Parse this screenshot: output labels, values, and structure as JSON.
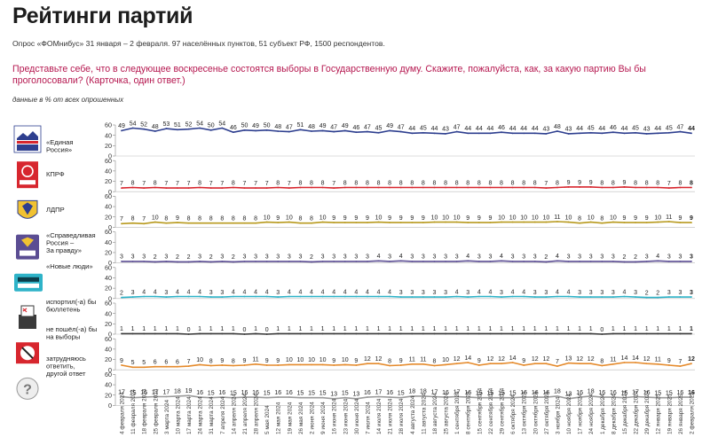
{
  "header": {
    "title": "Рейтинги партий",
    "subtitle": "Опрос «ФОМнибус» 31 января – 2 февраля. 97 населённых пунктов, 51 субъект РФ, 1500 респондентов.",
    "question": "Представьте себе, что в следующее воскресенье состоятся выборы в Государственную думу. Скажите, пожалуйста, как, за какую партию Вы бы проголосовали? (Карточка, один ответ.)",
    "unit_note": "данные в % от всех опрошенных"
  },
  "chart_data": {
    "type": "line",
    "title": "Рейтинги партий",
    "ylim": [
      0,
      60
    ],
    "y_ticks": [
      0,
      20,
      40,
      60
    ],
    "grid": false,
    "x": [
      "4 февраля 2024",
      "11 февраля 2024",
      "18 февраля 2024",
      "25 февраля 2024",
      "3 марта 2024",
      "10 марта 2024",
      "17 марта 2024",
      "24 марта 2024",
      "31 марта 2024",
      "7 апреля 2024",
      "14 апреля 2024",
      "21 апреля 2024",
      "28 апреля 2024",
      "5 мая 2024",
      "12 мая 2024",
      "19 мая 2024",
      "26 мая 2024",
      "2 июня 2024",
      "9 июня 2024",
      "16 июня 2024",
      "23 июня 2024",
      "30 июня 2024",
      "7 июля 2024",
      "14 июля 2024",
      "21 июля 2024",
      "28 июля 2024",
      "4 августа 2024",
      "11 августа 2024",
      "18 августа 2024",
      "25 августа 2024",
      "1 сентября 2024",
      "8 сентября 2024",
      "15 сентября 2024",
      "22 сентября 2024",
      "29 сентября 2024",
      "6 октября 2024",
      "13 октября 2024",
      "20 октября 2024",
      "27 октября 2024",
      "3 ноября 2024",
      "10 ноября 2024",
      "17 ноября 2024",
      "24 ноября 2024",
      "1 декабря 2024",
      "8 декабря 2024",
      "15 декабря 2024",
      "22 декабря 2024",
      "29 декабря 2024",
      "12 января 2025",
      "19 января 2025",
      "26 января 2025",
      "2 февраля 2025"
    ],
    "series": [
      {
        "name": "«Единая Россия»",
        "color": "#2e3f8f",
        "values": [
          49,
          54,
          52,
          48,
          53,
          51,
          52,
          54,
          50,
          54,
          46,
          50,
          49,
          50,
          48,
          47,
          51,
          48,
          49,
          47,
          49,
          46,
          47,
          45,
          49,
          47,
          44,
          45,
          44,
          43,
          47,
          44,
          44,
          44,
          46,
          44,
          44,
          44,
          43,
          48,
          43,
          44,
          45,
          44,
          46,
          44,
          45,
          43,
          44,
          45,
          47,
          44
        ]
      },
      {
        "name": "КПРФ",
        "color": "#d7262e",
        "values": [
          7,
          8,
          7,
          8,
          7,
          7,
          7,
          8,
          7,
          7,
          8,
          7,
          7,
          7,
          8,
          7,
          8,
          8,
          8,
          7,
          8,
          8,
          8,
          8,
          8,
          8,
          8,
          8,
          8,
          8,
          8,
          8,
          8,
          8,
          8,
          8,
          8,
          8,
          7,
          8,
          9,
          9,
          9,
          8,
          8,
          9,
          8,
          8,
          8,
          7,
          8,
          8
        ]
      },
      {
        "name": "ЛДПР",
        "color": "#b89a1e",
        "values": [
          7,
          8,
          7,
          10,
          8,
          9,
          8,
          8,
          8,
          8,
          8,
          8,
          8,
          10,
          9,
          10,
          8,
          8,
          10,
          9,
          9,
          9,
          9,
          10,
          9,
          9,
          9,
          9,
          10,
          10,
          10,
          9,
          9,
          9,
          10,
          10,
          10,
          10,
          10,
          11,
          10,
          8,
          10,
          8,
          10,
          9,
          9,
          9,
          10,
          11,
          9,
          9
        ]
      },
      {
        "name": "«Справедливая Россия – За правду»",
        "color": "#5b4d93",
        "values": [
          3,
          3,
          3,
          2,
          3,
          2,
          2,
          3,
          2,
          3,
          2,
          3,
          3,
          3,
          3,
          3,
          3,
          2,
          3,
          3,
          3,
          3,
          3,
          4,
          3,
          4,
          3,
          3,
          3,
          3,
          3,
          4,
          3,
          3,
          4,
          3,
          3,
          3,
          2,
          4,
          3,
          3,
          3,
          3,
          3,
          2,
          2,
          3,
          4,
          3,
          3,
          3
        ]
      },
      {
        "name": "«Новые люди»",
        "color": "#2eb3c8",
        "values": [
          2,
          3,
          4,
          4,
          3,
          4,
          4,
          4,
          3,
          3,
          4,
          4,
          4,
          4,
          3,
          4,
          4,
          4,
          4,
          4,
          4,
          4,
          4,
          4,
          4,
          3,
          3,
          3,
          3,
          3,
          4,
          3,
          4,
          4,
          3,
          4,
          4,
          3,
          3,
          4,
          4,
          3,
          3,
          3,
          3,
          4,
          3,
          2,
          2,
          3,
          3,
          3
        ]
      },
      {
        "name": "испортил(-а) бы бюллетень",
        "color": "#3a3a3a",
        "values": [
          1,
          1,
          1,
          1,
          1,
          1,
          0,
          1,
          1,
          1,
          1,
          0,
          1,
          0,
          1,
          1,
          1,
          1,
          1,
          1,
          1,
          1,
          1,
          1,
          1,
          1,
          1,
          1,
          1,
          1,
          1,
          1,
          1,
          1,
          1,
          1,
          1,
          1,
          1,
          1,
          1,
          1,
          1,
          0,
          1,
          1,
          1,
          1,
          1,
          1,
          1,
          1
        ]
      },
      {
        "name": "не пошёл(-а) бы на выборы",
        "color": "#e58a2b",
        "values": [
          9,
          5,
          5,
          6,
          6,
          6,
          7,
          10,
          8,
          9,
          8,
          9,
          11,
          9,
          9,
          10,
          10,
          10,
          10,
          9,
          10,
          9,
          12,
          12,
          8,
          9,
          11,
          11,
          8,
          10,
          12,
          14,
          9,
          12,
          12,
          14,
          9,
          12,
          12,
          7,
          13,
          12,
          12,
          8,
          11,
          14,
          14,
          12,
          11,
          9,
          7,
          12
        ]
      },
      {
        "name": "затрудняюсь ответить, другой ответ",
        "color": "#9a9a9a",
        "values": [
          17,
          15,
          16,
          17,
          17,
          18,
          19,
          16,
          15,
          16,
          15,
          16,
          16,
          15,
          16,
          16,
          15,
          15,
          15,
          13,
          15,
          13,
          16,
          17,
          16,
          15,
          18,
          18,
          17,
          16,
          17,
          16,
          15,
          15,
          15,
          15,
          16,
          16,
          16,
          18,
          13,
          16,
          18,
          16,
          16,
          15,
          17,
          16,
          15,
          15,
          16,
          16
        ]
      }
    ]
  },
  "icons": [
    "united-russia-logo",
    "kprf-logo",
    "ldpr-logo",
    "sr-logo",
    "new-people-logo",
    "ballot-box-icon",
    "no-vote-icon",
    "question-mark-icon"
  ]
}
